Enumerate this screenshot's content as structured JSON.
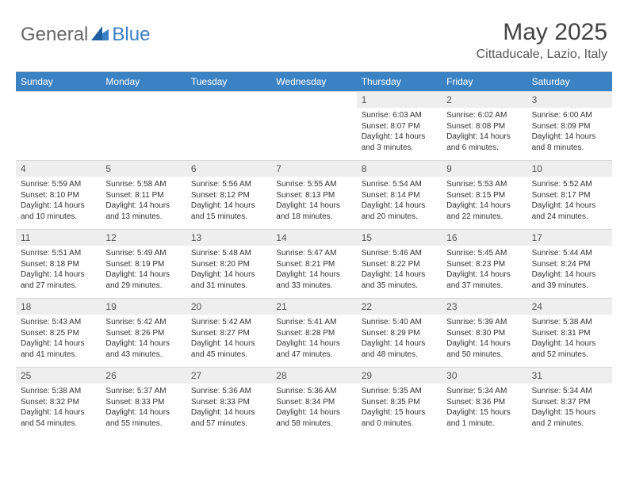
{
  "logo": {
    "text1": "General",
    "text2": "Blue"
  },
  "title": "May 2025",
  "subtitle": "Cittaducale, Lazio, Italy",
  "colors": {
    "header_bg": "#3b82c4",
    "header_text": "#ffffff",
    "daynum_bg": "#eeeeee",
    "border": "#d9d9d9",
    "text": "#333333",
    "logo_blue": "#3b7fc4"
  },
  "weekdays": [
    "Sunday",
    "Monday",
    "Tuesday",
    "Wednesday",
    "Thursday",
    "Friday",
    "Saturday"
  ],
  "weeks": [
    [
      {
        "empty": true
      },
      {
        "empty": true
      },
      {
        "empty": true
      },
      {
        "empty": true
      },
      {
        "day": "1",
        "sunrise": "Sunrise: 6:03 AM",
        "sunset": "Sunset: 8:07 PM",
        "daylight": "Daylight: 14 hours and 3 minutes."
      },
      {
        "day": "2",
        "sunrise": "Sunrise: 6:02 AM",
        "sunset": "Sunset: 8:08 PM",
        "daylight": "Daylight: 14 hours and 6 minutes."
      },
      {
        "day": "3",
        "sunrise": "Sunrise: 6:00 AM",
        "sunset": "Sunset: 8:09 PM",
        "daylight": "Daylight: 14 hours and 8 minutes."
      }
    ],
    [
      {
        "day": "4",
        "sunrise": "Sunrise: 5:59 AM",
        "sunset": "Sunset: 8:10 PM",
        "daylight": "Daylight: 14 hours and 10 minutes."
      },
      {
        "day": "5",
        "sunrise": "Sunrise: 5:58 AM",
        "sunset": "Sunset: 8:11 PM",
        "daylight": "Daylight: 14 hours and 13 minutes."
      },
      {
        "day": "6",
        "sunrise": "Sunrise: 5:56 AM",
        "sunset": "Sunset: 8:12 PM",
        "daylight": "Daylight: 14 hours and 15 minutes."
      },
      {
        "day": "7",
        "sunrise": "Sunrise: 5:55 AM",
        "sunset": "Sunset: 8:13 PM",
        "daylight": "Daylight: 14 hours and 18 minutes."
      },
      {
        "day": "8",
        "sunrise": "Sunrise: 5:54 AM",
        "sunset": "Sunset: 8:14 PM",
        "daylight": "Daylight: 14 hours and 20 minutes."
      },
      {
        "day": "9",
        "sunrise": "Sunrise: 5:53 AM",
        "sunset": "Sunset: 8:15 PM",
        "daylight": "Daylight: 14 hours and 22 minutes."
      },
      {
        "day": "10",
        "sunrise": "Sunrise: 5:52 AM",
        "sunset": "Sunset: 8:17 PM",
        "daylight": "Daylight: 14 hours and 24 minutes."
      }
    ],
    [
      {
        "day": "11",
        "sunrise": "Sunrise: 5:51 AM",
        "sunset": "Sunset: 8:18 PM",
        "daylight": "Daylight: 14 hours and 27 minutes."
      },
      {
        "day": "12",
        "sunrise": "Sunrise: 5:49 AM",
        "sunset": "Sunset: 8:19 PM",
        "daylight": "Daylight: 14 hours and 29 minutes."
      },
      {
        "day": "13",
        "sunrise": "Sunrise: 5:48 AM",
        "sunset": "Sunset: 8:20 PM",
        "daylight": "Daylight: 14 hours and 31 minutes."
      },
      {
        "day": "14",
        "sunrise": "Sunrise: 5:47 AM",
        "sunset": "Sunset: 8:21 PM",
        "daylight": "Daylight: 14 hours and 33 minutes."
      },
      {
        "day": "15",
        "sunrise": "Sunrise: 5:46 AM",
        "sunset": "Sunset: 8:22 PM",
        "daylight": "Daylight: 14 hours and 35 minutes."
      },
      {
        "day": "16",
        "sunrise": "Sunrise: 5:45 AM",
        "sunset": "Sunset: 8:23 PM",
        "daylight": "Daylight: 14 hours and 37 minutes."
      },
      {
        "day": "17",
        "sunrise": "Sunrise: 5:44 AM",
        "sunset": "Sunset: 8:24 PM",
        "daylight": "Daylight: 14 hours and 39 minutes."
      }
    ],
    [
      {
        "day": "18",
        "sunrise": "Sunrise: 5:43 AM",
        "sunset": "Sunset: 8:25 PM",
        "daylight": "Daylight: 14 hours and 41 minutes."
      },
      {
        "day": "19",
        "sunrise": "Sunrise: 5:42 AM",
        "sunset": "Sunset: 8:26 PM",
        "daylight": "Daylight: 14 hours and 43 minutes."
      },
      {
        "day": "20",
        "sunrise": "Sunrise: 5:42 AM",
        "sunset": "Sunset: 8:27 PM",
        "daylight": "Daylight: 14 hours and 45 minutes."
      },
      {
        "day": "21",
        "sunrise": "Sunrise: 5:41 AM",
        "sunset": "Sunset: 8:28 PM",
        "daylight": "Daylight: 14 hours and 47 minutes."
      },
      {
        "day": "22",
        "sunrise": "Sunrise: 5:40 AM",
        "sunset": "Sunset: 8:29 PM",
        "daylight": "Daylight: 14 hours and 48 minutes."
      },
      {
        "day": "23",
        "sunrise": "Sunrise: 5:39 AM",
        "sunset": "Sunset: 8:30 PM",
        "daylight": "Daylight: 14 hours and 50 minutes."
      },
      {
        "day": "24",
        "sunrise": "Sunrise: 5:38 AM",
        "sunset": "Sunset: 8:31 PM",
        "daylight": "Daylight: 14 hours and 52 minutes."
      }
    ],
    [
      {
        "day": "25",
        "sunrise": "Sunrise: 5:38 AM",
        "sunset": "Sunset: 8:32 PM",
        "daylight": "Daylight: 14 hours and 54 minutes."
      },
      {
        "day": "26",
        "sunrise": "Sunrise: 5:37 AM",
        "sunset": "Sunset: 8:33 PM",
        "daylight": "Daylight: 14 hours and 55 minutes."
      },
      {
        "day": "27",
        "sunrise": "Sunrise: 5:36 AM",
        "sunset": "Sunset: 8:33 PM",
        "daylight": "Daylight: 14 hours and 57 minutes."
      },
      {
        "day": "28",
        "sunrise": "Sunrise: 5:36 AM",
        "sunset": "Sunset: 8:34 PM",
        "daylight": "Daylight: 14 hours and 58 minutes."
      },
      {
        "day": "29",
        "sunrise": "Sunrise: 5:35 AM",
        "sunset": "Sunset: 8:35 PM",
        "daylight": "Daylight: 15 hours and 0 minutes."
      },
      {
        "day": "30",
        "sunrise": "Sunrise: 5:34 AM",
        "sunset": "Sunset: 8:36 PM",
        "daylight": "Daylight: 15 hours and 1 minute."
      },
      {
        "day": "31",
        "sunrise": "Sunrise: 5:34 AM",
        "sunset": "Sunset: 8:37 PM",
        "daylight": "Daylight: 15 hours and 2 minutes."
      }
    ]
  ]
}
